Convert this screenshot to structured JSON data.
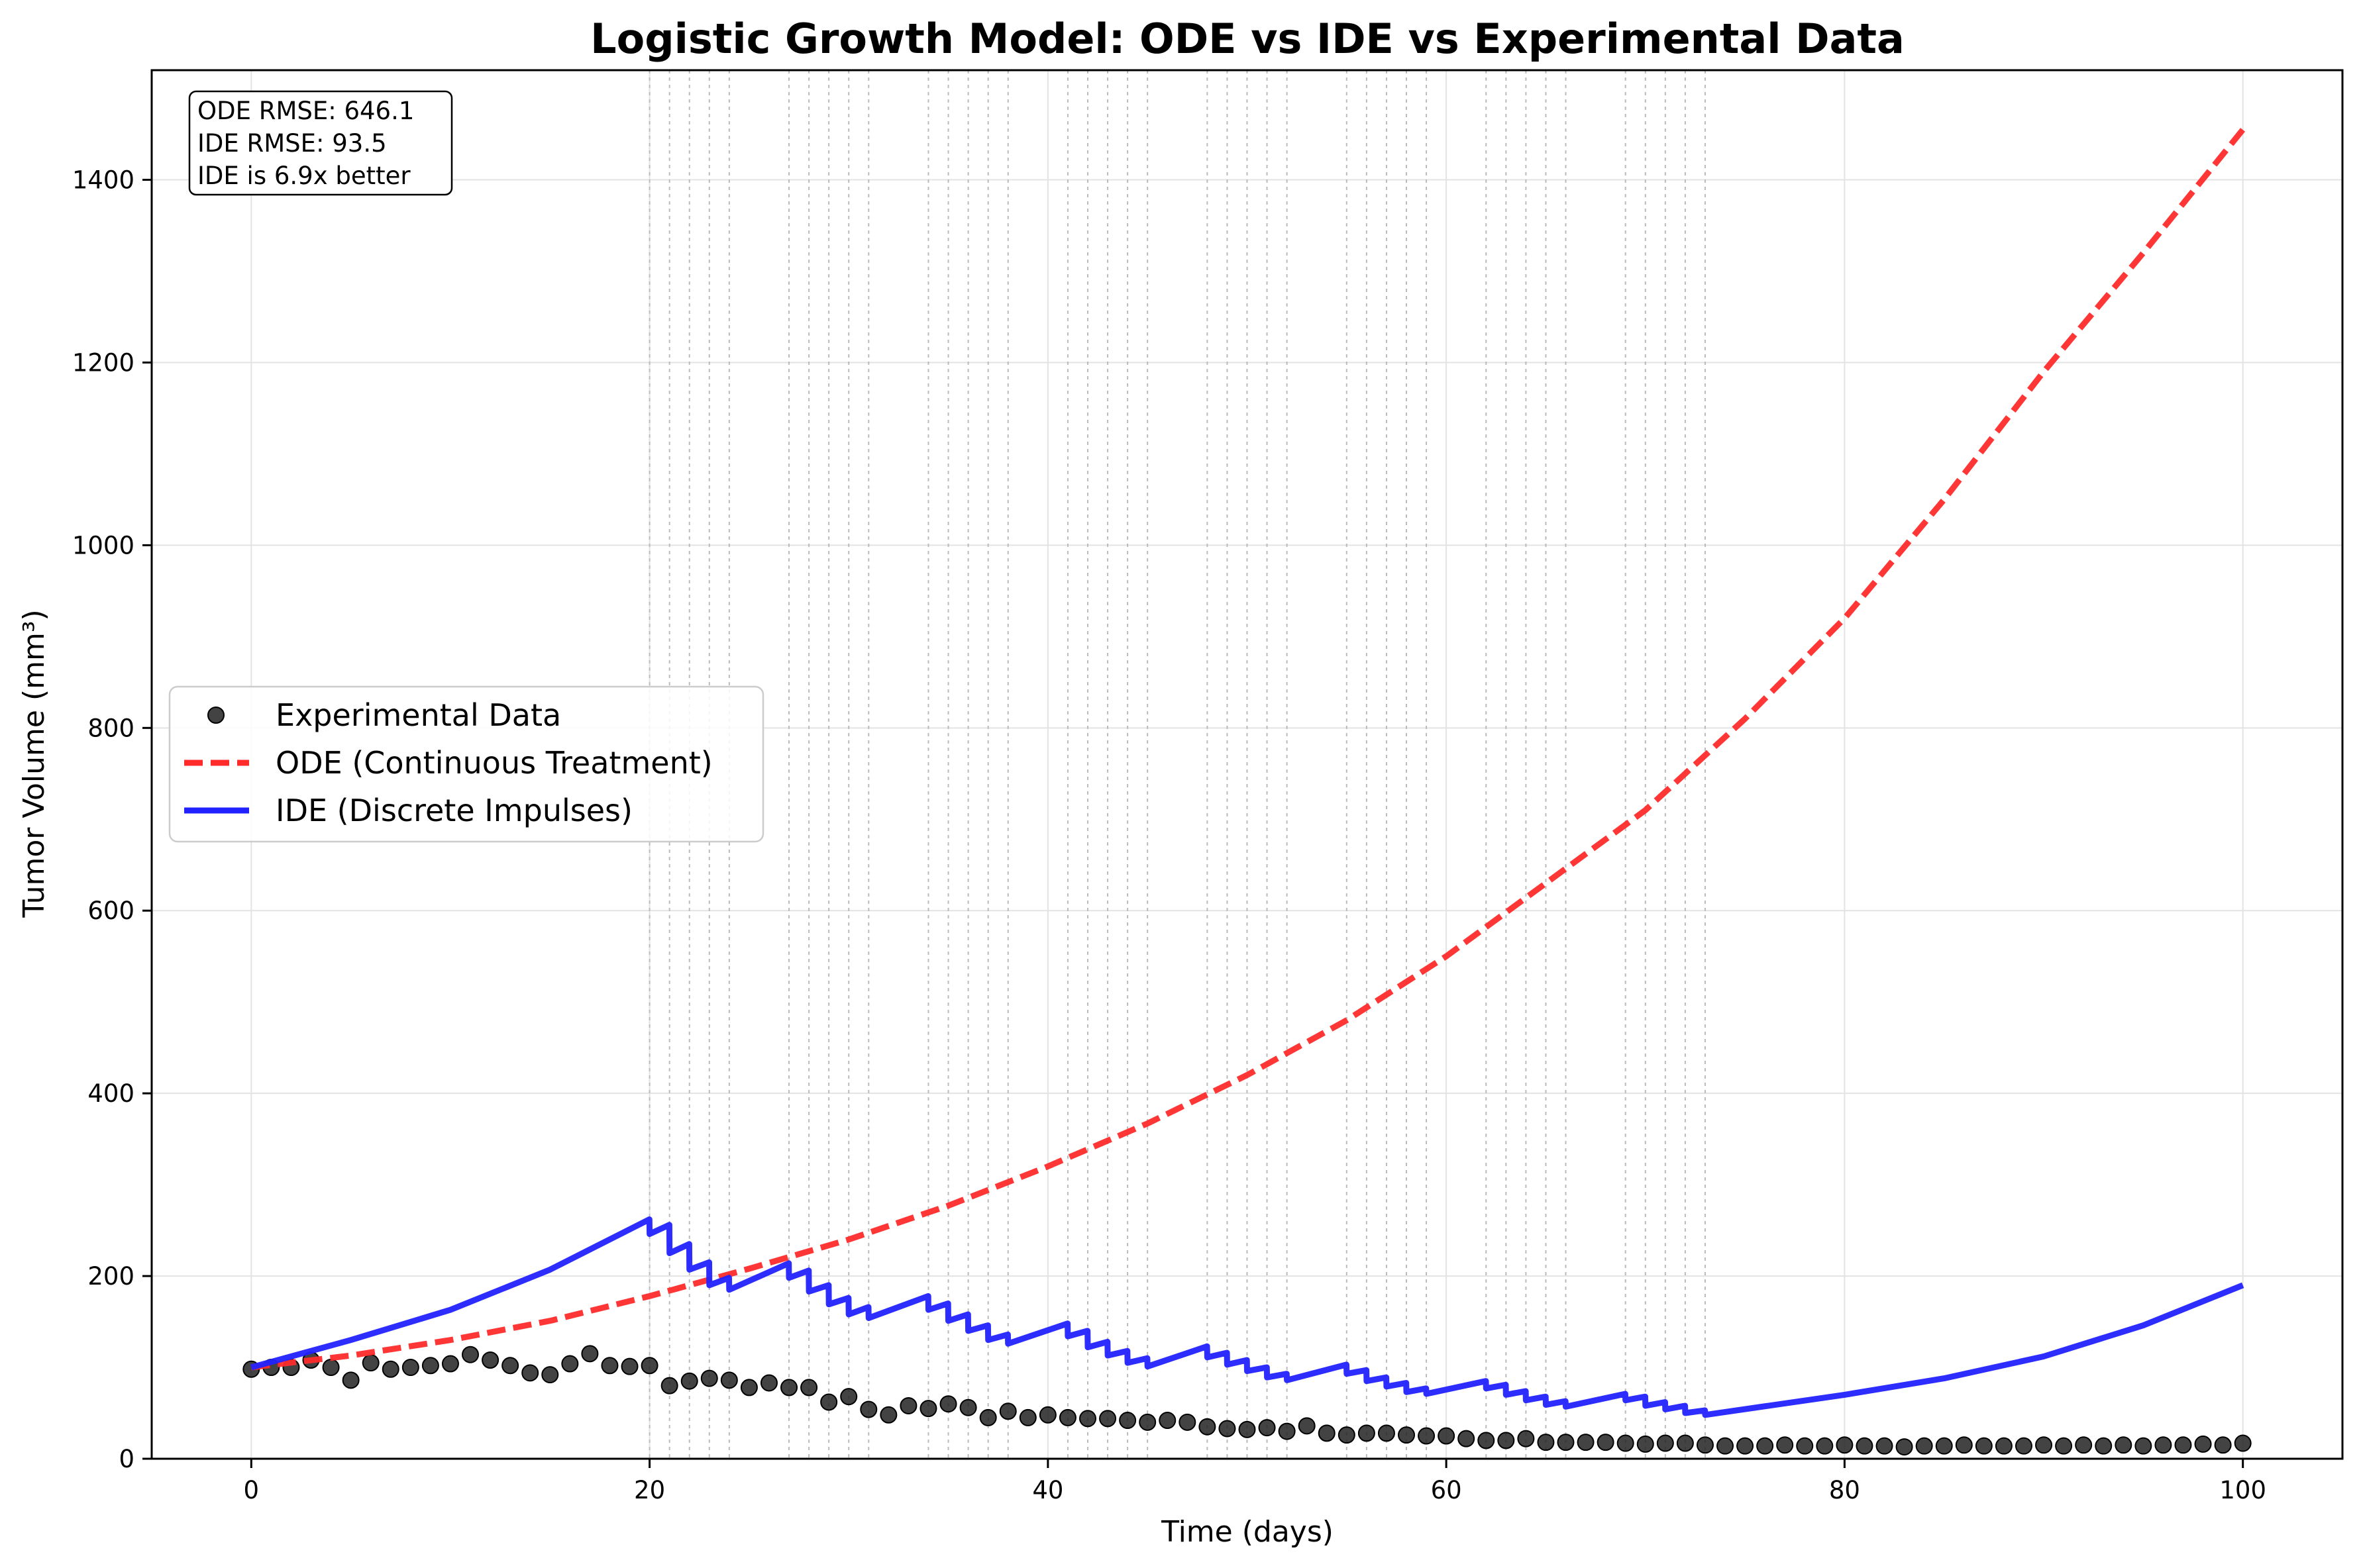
{
  "chart_data": {
    "type": "line",
    "title": "Logistic Growth Model: ODE vs IDE vs Experimental Data",
    "xlabel": "Time (days)",
    "ylabel": "Tumor Volume (mm³)",
    "xlim": [
      -5,
      105
    ],
    "ylim": [
      0,
      1520
    ],
    "x_ticks": [
      0,
      20,
      40,
      60,
      80,
      100
    ],
    "y_ticks": [
      0,
      200,
      400,
      600,
      800,
      1000,
      1200,
      1400
    ],
    "grid": true,
    "legend_position": "center-left",
    "stats_box": [
      "ODE RMSE: 646.1",
      "IDE RMSE: 93.5",
      "IDE is 6.9x better"
    ],
    "impulse_days": [
      20,
      21,
      22,
      23,
      24,
      27,
      28,
      29,
      30,
      31,
      34,
      35,
      36,
      37,
      38,
      41,
      42,
      43,
      44,
      45,
      48,
      49,
      50,
      51,
      52,
      55,
      56,
      57,
      58,
      59,
      62,
      63,
      64,
      65,
      66,
      69,
      70,
      71,
      72,
      73
    ],
    "impulse_color": "#bbbbbb",
    "series": [
      {
        "name": "Experimental Data",
        "kind": "scatter",
        "color": "#222222",
        "x": [
          0,
          1,
          2,
          3,
          4,
          5,
          6,
          7,
          8,
          9,
          10,
          11,
          12,
          13,
          14,
          15,
          16,
          17,
          18,
          19,
          20,
          21,
          22,
          23,
          24,
          25,
          26,
          27,
          28,
          29,
          30,
          31,
          32,
          33,
          34,
          35,
          36,
          37,
          38,
          39,
          40,
          41,
          42,
          43,
          44,
          45,
          46,
          47,
          48,
          49,
          50,
          51,
          52,
          53,
          54,
          55,
          56,
          57,
          58,
          59,
          60,
          61,
          62,
          63,
          64,
          65,
          66,
          67,
          68,
          69,
          70,
          71,
          72,
          73,
          74,
          75,
          76,
          77,
          78,
          79,
          80,
          81,
          82,
          83,
          84,
          85,
          86,
          87,
          88,
          89,
          90,
          91,
          92,
          93,
          94,
          95,
          96,
          97,
          98,
          99,
          100
        ],
        "y": [
          98,
          100,
          100,
          108,
          100,
          86,
          105,
          98,
          100,
          102,
          104,
          114,
          108,
          102,
          94,
          92,
          104,
          115,
          102,
          101,
          102,
          80,
          85,
          88,
          86,
          78,
          83,
          78,
          78,
          62,
          68,
          54,
          48,
          58,
          55,
          60,
          56,
          45,
          52,
          45,
          48,
          45,
          44,
          44,
          42,
          40,
          42,
          40,
          35,
          33,
          32,
          34,
          30,
          36,
          28,
          26,
          28,
          28,
          26,
          25,
          25,
          22,
          20,
          20,
          22,
          18,
          18,
          18,
          18,
          17,
          16,
          17,
          17,
          15,
          14,
          14,
          14,
          15,
          14,
          14,
          15,
          14,
          14,
          13,
          14,
          14,
          15,
          14,
          14,
          14,
          15,
          14,
          15,
          14,
          15,
          14,
          15,
          15,
          16,
          15,
          17
        ]
      },
      {
        "name": "ODE (Continuous Treatment)",
        "kind": "line-dashed",
        "color": "#ff2b2b",
        "x": [
          0,
          5,
          10,
          15,
          20,
          25,
          30,
          35,
          40,
          45,
          50,
          55,
          60,
          65,
          70,
          75,
          80,
          85,
          90,
          95,
          100
        ],
        "y": [
          100,
          113,
          130,
          151,
          178,
          208,
          240,
          277,
          320,
          367,
          420,
          480,
          550,
          630,
          710,
          810,
          920,
          1050,
          1190,
          1320,
          1455
        ]
      },
      {
        "name": "IDE (Discrete Impulses)",
        "kind": "line",
        "color": "#2222ff",
        "x": [
          0,
          5,
          10,
          15,
          19.99,
          20,
          20.99,
          21,
          21.99,
          22,
          22.99,
          23,
          23.99,
          24,
          26.99,
          27,
          27.99,
          28,
          28.99,
          29,
          29.99,
          30,
          30.99,
          31,
          33.99,
          34,
          34.99,
          35,
          35.99,
          36,
          36.99,
          37,
          37.99,
          38,
          40.99,
          41,
          41.99,
          42,
          42.99,
          43,
          43.99,
          44,
          44.99,
          45,
          47.99,
          48,
          48.99,
          49,
          49.99,
          50,
          50.99,
          51,
          51.99,
          52,
          54.99,
          55,
          55.99,
          56,
          56.99,
          57,
          57.99,
          58,
          58.99,
          59,
          61.99,
          62,
          62.99,
          63,
          63.99,
          64,
          64.99,
          65,
          65.99,
          66,
          68.99,
          69,
          69.99,
          70,
          70.99,
          71,
          71.99,
          72,
          72.99,
          73,
          80,
          85,
          90,
          95,
          100
        ],
        "y": [
          100,
          130,
          163,
          207,
          262,
          246,
          256,
          225,
          235,
          207,
          215,
          190,
          198,
          185,
          214,
          198,
          206,
          183,
          190,
          169,
          176,
          158,
          166,
          154,
          178,
          163,
          170,
          151,
          158,
          140,
          146,
          130,
          136,
          126,
          148,
          134,
          140,
          122,
          128,
          113,
          118,
          105,
          110,
          101,
          123,
          111,
          116,
          103,
          108,
          96,
          100,
          89,
          93,
          86,
          103,
          93,
          97,
          85,
          89,
          79,
          83,
          73,
          77,
          71,
          85,
          77,
          81,
          70,
          74,
          64,
          68,
          59,
          63,
          57,
          71,
          64,
          68,
          58,
          62,
          54,
          58,
          50,
          53,
          48,
          70,
          88,
          112,
          146,
          190
        ]
      }
    ]
  }
}
